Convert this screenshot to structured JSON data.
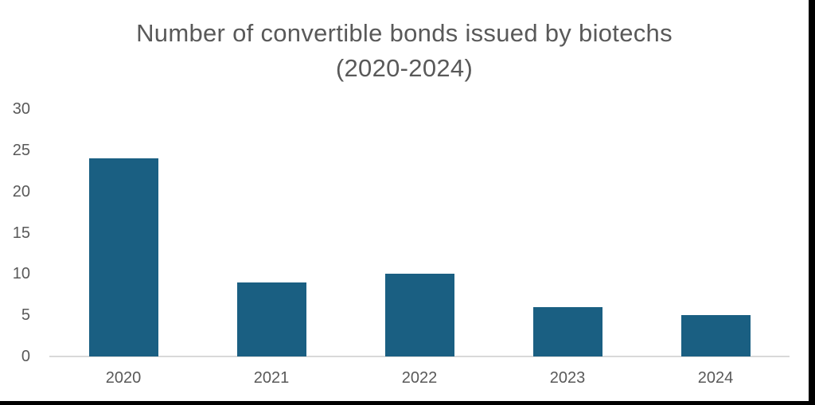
{
  "frame": {
    "color": "#000000"
  },
  "chart_data": {
    "type": "bar",
    "title": "Number of convertible bonds issued by biotechs (2020-2024)",
    "title_lines": [
      "Number of convertible bonds issued by biotechs",
      "(2020-2024)"
    ],
    "categories": [
      "2020",
      "2021",
      "2022",
      "2023",
      "2024"
    ],
    "values": [
      24,
      9,
      10,
      6,
      5
    ],
    "yticks": [
      0,
      5,
      10,
      15,
      20,
      25,
      30
    ],
    "ylim": [
      0,
      30
    ],
    "xlabel": "",
    "ylabel": "",
    "grid": false,
    "legend": false,
    "bar_color": "#1A5F82",
    "axis_line_color": "#D9D9D9",
    "text_color": "#595959"
  }
}
